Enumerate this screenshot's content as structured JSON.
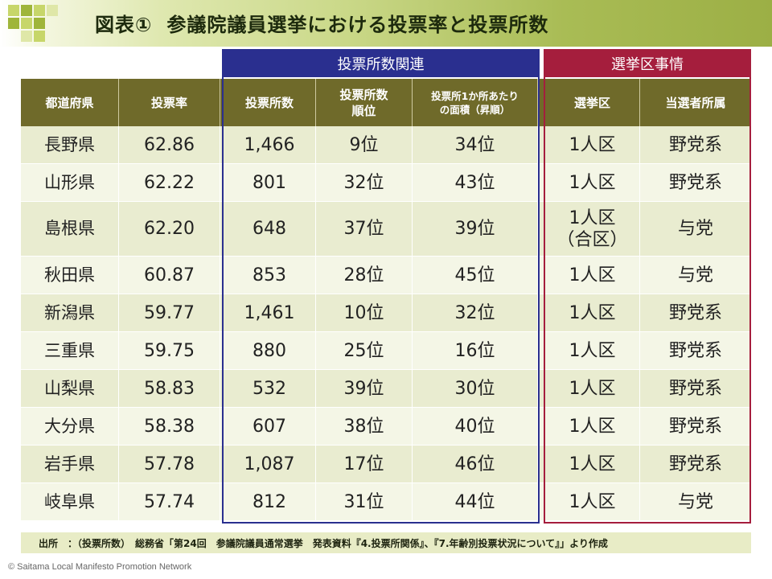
{
  "title": {
    "number": "図表①",
    "text": "参議院議員選挙における投票率と投票所数"
  },
  "groups": {
    "polling": "投票所数関連",
    "district": "選挙区事情"
  },
  "headers": [
    "都道府県",
    "投票率",
    "投票所数",
    "投票所数\n順位",
    "投票所1か所あたり\nの面積（昇順）",
    "選挙区",
    "当選者所属"
  ],
  "rows": [
    [
      "長野県",
      "62.86",
      "1,466",
      "9位",
      "34位",
      "1人区",
      "野党系"
    ],
    [
      "山形県",
      "62.22",
      "801",
      "32位",
      "43位",
      "1人区",
      "野党系"
    ],
    [
      "島根県",
      "62.20",
      "648",
      "37位",
      "39位",
      "1人区\n（合区）",
      "与党"
    ],
    [
      "秋田県",
      "60.87",
      "853",
      "28位",
      "45位",
      "1人区",
      "与党"
    ],
    [
      "新潟県",
      "59.77",
      "1,461",
      "10位",
      "32位",
      "1人区",
      "野党系"
    ],
    [
      "三重県",
      "59.75",
      "880",
      "25位",
      "16位",
      "1人区",
      "野党系"
    ],
    [
      "山梨県",
      "58.83",
      "532",
      "39位",
      "30位",
      "1人区",
      "野党系"
    ],
    [
      "大分県",
      "58.38",
      "607",
      "38位",
      "40位",
      "1人区",
      "野党系"
    ],
    [
      "岩手県",
      "57.78",
      "1,087",
      "17位",
      "46位",
      "1人区",
      "野党系"
    ],
    [
      "岐阜県",
      "57.74",
      "812",
      "31位",
      "44位",
      "1人区",
      "与党"
    ]
  ],
  "source": "出所　：（投票所数）　総務省「第24回　参議院議員通常選挙　発表資料『4.投票所関係』、『7.年齢別投票状況について』」より作成",
  "copyright": "© Saitama Local Manifesto Promotion Network",
  "colors": {
    "header_bg": "#6f6a2a",
    "row_a": "#e9ecd0",
    "row_b": "#f4f6e6",
    "blue_frame": "#2a2f8f",
    "red_frame": "#a51e3d"
  }
}
